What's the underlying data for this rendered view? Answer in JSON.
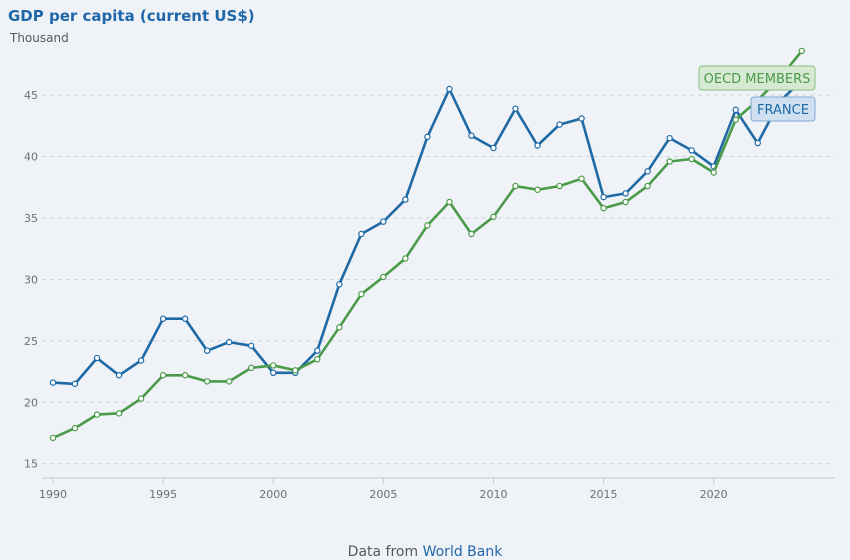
{
  "chart_data": {
    "type": "line",
    "title": "GDP per capita (current US$)",
    "unit_label": "Thousand",
    "x": [
      1990,
      1991,
      1992,
      1993,
      1994,
      1995,
      1996,
      1997,
      1998,
      1999,
      2000,
      2001,
      2002,
      2003,
      2004,
      2005,
      2006,
      2007,
      2008,
      2009,
      2010,
      2011,
      2012,
      2013,
      2014,
      2015,
      2016,
      2017,
      2018,
      2019,
      2020,
      2021,
      2022,
      2023,
      2024
    ],
    "series": [
      {
        "name": "FRANCE",
        "color": "#1f6aa5",
        "values": [
          21.6,
          21.5,
          23.6,
          22.2,
          23.4,
          26.8,
          26.8,
          24.2,
          24.9,
          24.6,
          22.4,
          22.4,
          24.2,
          29.6,
          33.7,
          34.7,
          36.5,
          41.6,
          45.5,
          41.7,
          40.7,
          43.9,
          40.9,
          42.6,
          43.1,
          36.7,
          37.0,
          38.8,
          41.5,
          40.5,
          39.2,
          43.8,
          41.1,
          44.5,
          46.2
        ]
      },
      {
        "name": "OECD MEMBERS",
        "color": "#4a9a4a",
        "values": [
          17.1,
          17.9,
          19.0,
          19.1,
          20.3,
          22.2,
          22.2,
          21.7,
          21.7,
          22.8,
          23.0,
          22.6,
          23.5,
          26.1,
          28.8,
          30.2,
          31.7,
          34.4,
          36.3,
          33.7,
          35.1,
          37.6,
          37.3,
          37.6,
          38.2,
          35.8,
          36.3,
          37.6,
          39.6,
          39.8,
          38.7,
          43.0,
          44.6,
          46.4,
          48.6
        ]
      }
    ],
    "y_ticks": [
      15,
      20,
      25,
      30,
      35,
      40,
      45
    ],
    "x_ticks": [
      1990,
      1995,
      2000,
      2005,
      2010,
      2015,
      2020
    ],
    "xlim": [
      1990,
      2024.5
    ],
    "ylim": [
      14,
      49
    ],
    "grid": true,
    "legend": "line-end labels at top-right"
  },
  "footer": {
    "prefix": "Data from",
    "link": "World Bank"
  }
}
